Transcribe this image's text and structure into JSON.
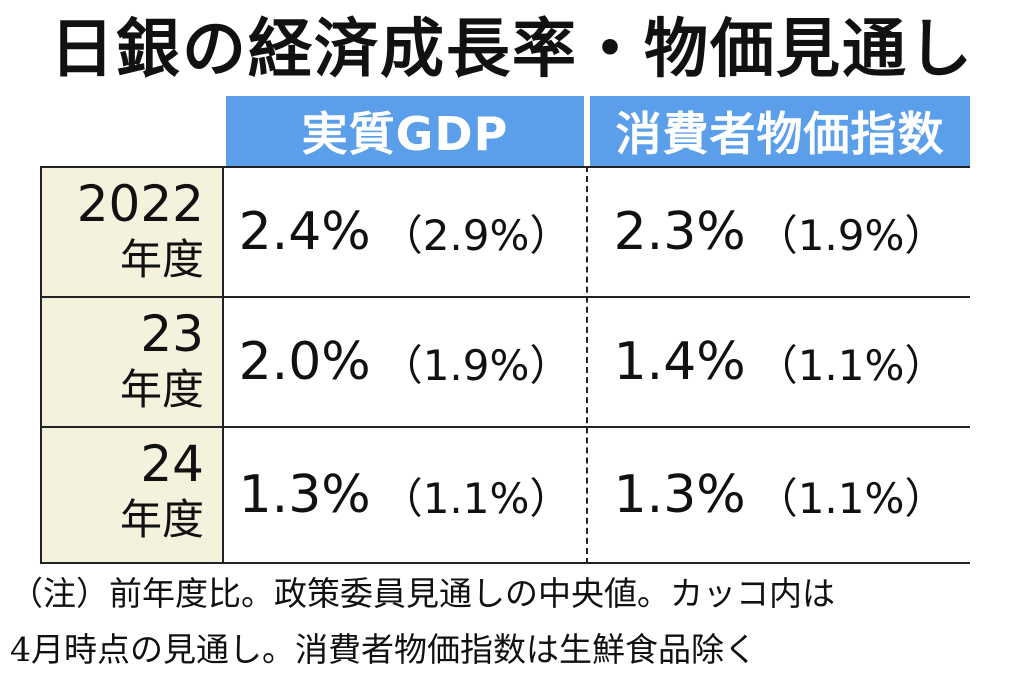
{
  "title": "日銀の経済成長率・物価見通し",
  "chart_data": {
    "type": "table",
    "columns": [
      "実質GDP",
      "消費者物価指数"
    ],
    "rows": [
      {
        "year": "2022",
        "unit": "年度",
        "gdp": "2.4%",
        "gdp_prev": "（2.9%）",
        "cpi": "2.3%",
        "cpi_prev": "（1.9%）"
      },
      {
        "year": "23",
        "unit": "年度",
        "gdp": "2.0%",
        "gdp_prev": "（1.9%）",
        "cpi": "1.4%",
        "cpi_prev": "（1.1%）"
      },
      {
        "year": "24",
        "unit": "年度",
        "gdp": "1.3%",
        "gdp_prev": "（1.1%）",
        "cpi": "1.3%",
        "cpi_prev": "（1.1%）"
      }
    ]
  },
  "note": {
    "line1": "（注）前年度比。政策委員見通しの中央値。カッコ内は",
    "line2": "4月時点の見通し。消費者物価指数は生鮮食品除く"
  },
  "colors": {
    "header_bg": "#5b9ee9",
    "rowhead_bg": "#f4f1dc"
  }
}
